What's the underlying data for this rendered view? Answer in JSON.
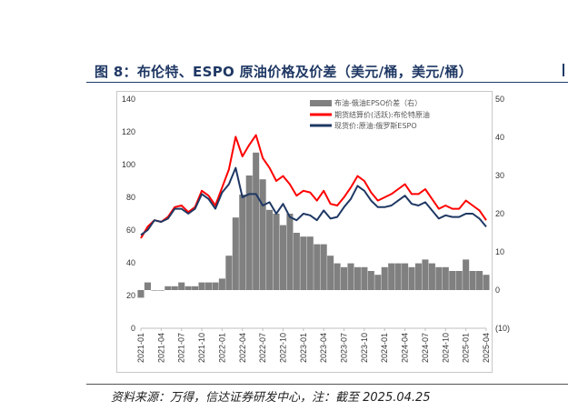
{
  "header": {
    "figure_title": "图 8：布伦特、ESPO 原油价格及价差（美元/桶，美元/桶）"
  },
  "footer": {
    "source_note": "资料来源：万得，信达证券研发中心，注：截至 2025.04.25"
  },
  "colors": {
    "brent": "#ff0000",
    "espo": "#1f3864",
    "spread": "#808080",
    "negative_label": "#ff0000"
  },
  "chart_data": {
    "type": "line",
    "title": "布伦特、ESPO 原油价格及价差",
    "x_type": "monthly time axis",
    "x_range": [
      "2021-01",
      "2025-04"
    ],
    "x_tick_labels": [
      "2021-01",
      "2021-04",
      "2021-07",
      "2021-10",
      "2022-01",
      "2022-04",
      "2022-07",
      "2022-10",
      "2023-01",
      "2023-04",
      "2023-07",
      "2023-10",
      "2024-01",
      "2024-04",
      "2024-07",
      "2024-10",
      "2025-01",
      "2025-04"
    ],
    "left_axis": {
      "range": [
        0,
        140
      ],
      "ticks": [
        "0",
        "20",
        "40",
        "60",
        "80",
        "100",
        "120",
        "140"
      ]
    },
    "right_axis": {
      "range": [
        -10,
        50
      ],
      "ticks": [
        "(10)",
        "0",
        "10",
        "20",
        "30",
        "40",
        "50"
      ]
    },
    "legend": [
      "布油-俄油EPSO价差（右）",
      "期货结算价(活跃):布伦特原油",
      "现货价:原油:俄罗斯ESPO"
    ],
    "series": [
      {
        "name": "期货结算价(活跃):布伦特原油",
        "axis": "left",
        "kind": "line",
        "x": [
          "2021-01",
          "2021-02",
          "2021-03",
          "2021-04",
          "2021-05",
          "2021-06",
          "2021-07",
          "2021-08",
          "2021-09",
          "2021-10",
          "2021-11",
          "2021-12",
          "2022-01",
          "2022-02",
          "2022-03",
          "2022-04",
          "2022-05",
          "2022-06",
          "2022-07",
          "2022-08",
          "2022-09",
          "2022-10",
          "2022-11",
          "2022-12",
          "2023-01",
          "2023-02",
          "2023-03",
          "2023-04",
          "2023-05",
          "2023-06",
          "2023-07",
          "2023-08",
          "2023-09",
          "2023-10",
          "2023-11",
          "2023-12",
          "2024-01",
          "2024-02",
          "2024-03",
          "2024-04",
          "2024-05",
          "2024-06",
          "2024-07",
          "2024-08",
          "2024-09",
          "2024-10",
          "2024-11",
          "2024-12",
          "2025-01",
          "2025-02",
          "2025-03",
          "2025-04"
        ],
        "values": [
          55,
          62,
          66,
          65,
          68,
          74,
          75,
          71,
          74,
          84,
          81,
          75,
          86,
          97,
          117,
          105,
          112,
          118,
          104,
          98,
          90,
          93,
          88,
          81,
          84,
          83,
          78,
          84,
          76,
          75,
          80,
          86,
          93,
          90,
          83,
          78,
          80,
          82,
          85,
          88,
          82,
          82,
          85,
          79,
          73,
          75,
          73,
          73,
          78,
          75,
          72,
          66
        ]
      },
      {
        "name": "现货价:原油:俄罗斯ESPO",
        "axis": "left",
        "kind": "line",
        "x": [
          "2021-01",
          "2021-02",
          "2021-03",
          "2021-04",
          "2021-05",
          "2021-06",
          "2021-07",
          "2021-08",
          "2021-09",
          "2021-10",
          "2021-11",
          "2021-12",
          "2022-01",
          "2022-02",
          "2022-03",
          "2022-04",
          "2022-05",
          "2022-06",
          "2022-07",
          "2022-08",
          "2022-09",
          "2022-10",
          "2022-11",
          "2022-12",
          "2023-01",
          "2023-02",
          "2023-03",
          "2023-04",
          "2023-05",
          "2023-06",
          "2023-07",
          "2023-08",
          "2023-09",
          "2023-10",
          "2023-11",
          "2023-12",
          "2024-01",
          "2024-02",
          "2024-03",
          "2024-04",
          "2024-05",
          "2024-06",
          "2024-07",
          "2024-08",
          "2024-09",
          "2024-10",
          "2024-11",
          "2024-12",
          "2025-01",
          "2025-02",
          "2025-03",
          "2025-04"
        ],
        "values": [
          57,
          60,
          66,
          65,
          67,
          73,
          73,
          70,
          73,
          82,
          79,
          73,
          83,
          88,
          98,
          80,
          82,
          82,
          75,
          77,
          70,
          76,
          68,
          66,
          70,
          69,
          66,
          72,
          67,
          68,
          74,
          79,
          87,
          84,
          78,
          74,
          74,
          75,
          78,
          81,
          76,
          75,
          77,
          72,
          67,
          69,
          68,
          68,
          70,
          70,
          67,
          62
        ]
      },
      {
        "name": "布油-俄油EPSO价差（右）",
        "axis": "right",
        "kind": "area",
        "x": [
          "2021-01",
          "2021-02",
          "2021-03",
          "2021-04",
          "2021-05",
          "2021-06",
          "2021-07",
          "2021-08",
          "2021-09",
          "2021-10",
          "2021-11",
          "2021-12",
          "2022-01",
          "2022-02",
          "2022-03",
          "2022-04",
          "2022-05",
          "2022-06",
          "2022-07",
          "2022-08",
          "2022-09",
          "2022-10",
          "2022-11",
          "2022-12",
          "2023-01",
          "2023-02",
          "2023-03",
          "2023-04",
          "2023-05",
          "2023-06",
          "2023-07",
          "2023-08",
          "2023-09",
          "2023-10",
          "2023-11",
          "2023-12",
          "2024-01",
          "2024-02",
          "2024-03",
          "2024-04",
          "2024-05",
          "2024-06",
          "2024-07",
          "2024-08",
          "2024-09",
          "2024-10",
          "2024-11",
          "2024-12",
          "2025-01",
          "2025-02",
          "2025-03",
          "2025-04"
        ],
        "values": [
          -2,
          2,
          0,
          0,
          1,
          1,
          2,
          1,
          1,
          2,
          2,
          2,
          3,
          9,
          19,
          25,
          30,
          36,
          29,
          21,
          20,
          17,
          20,
          15,
          14,
          14,
          12,
          12,
          9,
          7,
          6,
          7,
          6,
          6,
          5,
          4,
          6,
          7,
          7,
          7,
          6,
          7,
          8,
          7,
          6,
          6,
          5,
          5,
          8,
          5,
          5,
          4
        ]
      }
    ],
    "negative_tick_color": "#ff0000"
  }
}
